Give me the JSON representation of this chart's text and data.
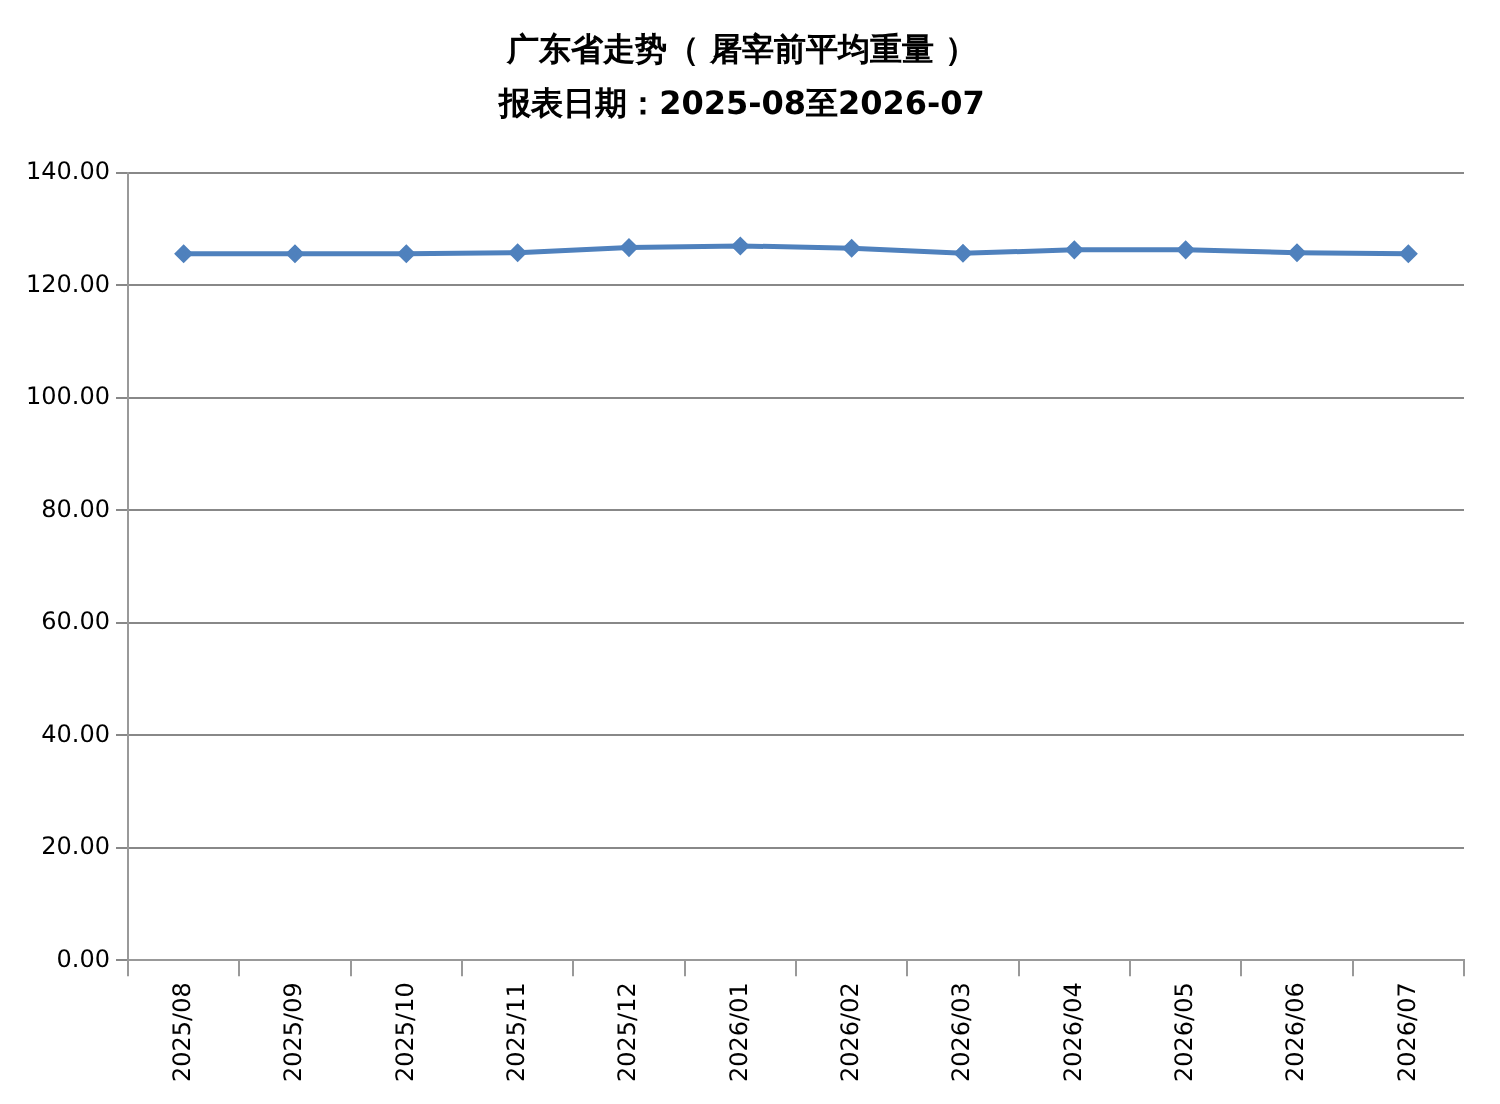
{
  "chart_data": {
    "type": "line",
    "title": "广东省走势（ 屠宰前平均重量 ）",
    "subtitle": "报表日期：2025-08至2026-07",
    "categories": [
      "2025/08",
      "2025/09",
      "2025/10",
      "2025/11",
      "2025/12",
      "2026/01",
      "2026/02",
      "2026/03",
      "2026/04",
      "2026/05",
      "2026/06",
      "2026/07"
    ],
    "series": [
      {
        "color": "#4f81bd",
        "values": [
          125.6,
          125.6,
          125.6,
          125.8,
          126.7,
          127.0,
          126.6,
          125.7,
          126.3,
          126.3,
          125.8,
          125.6
        ]
      }
    ],
    "ylim": [
      0,
      140
    ],
    "yticks": [
      {
        "value": 0,
        "label": "0.00"
      },
      {
        "value": 20,
        "label": "20.00"
      },
      {
        "value": 40,
        "label": "40.00"
      },
      {
        "value": 60,
        "label": "60.00"
      },
      {
        "value": 80,
        "label": "80.00"
      },
      {
        "value": 100,
        "label": "100.00"
      },
      {
        "value": 120,
        "label": "120.00"
      },
      {
        "value": 140,
        "label": "140.00"
      }
    ],
    "grid": "y",
    "legend": false,
    "marker": "diamond",
    "line_style": "solid"
  }
}
